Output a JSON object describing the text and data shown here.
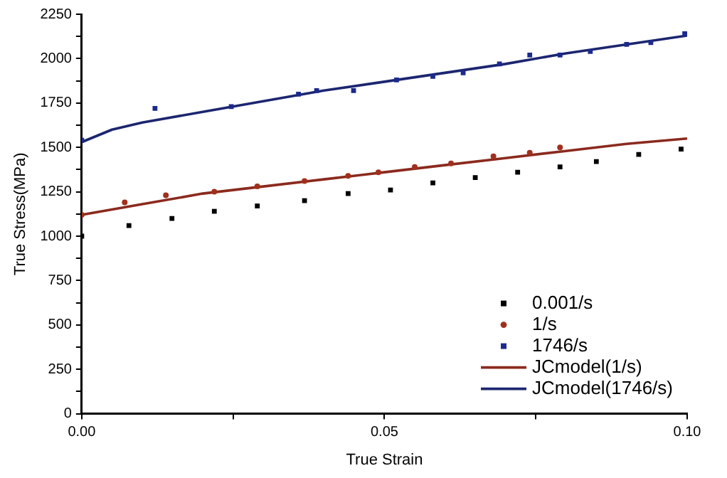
{
  "chart_data": {
    "type": "scatter",
    "xlabel": "True Strain",
    "ylabel": "True Stress(MPa)",
    "xlim": [
      0,
      0.1
    ],
    "xticks": [
      {
        "value": 0,
        "label": "0.00"
      },
      {
        "value": 0.025,
        "label": null
      },
      {
        "value": 0.05,
        "label": "0.05"
      },
      {
        "value": 0.075,
        "label": null
      },
      {
        "value": 0.1,
        "label": "0.10"
      }
    ],
    "ylim": [
      0,
      2250
    ],
    "yticks": [
      0,
      {
        "value": 125,
        "label": null
      },
      250,
      {
        "value": 375,
        "label": null
      },
      500,
      {
        "value": 625,
        "label": null
      },
      750,
      {
        "value": 875,
        "label": null
      },
      1000,
      {
        "value": 1125,
        "label": null
      },
      1250,
      {
        "value": 1375,
        "label": null
      },
      1500,
      {
        "value": 1625,
        "label": null
      },
      1750,
      {
        "value": 1875,
        "label": null
      },
      2000,
      {
        "value": 2125,
        "label": null
      },
      2250
    ],
    "grid": false,
    "legend": "bottom right",
    "series": [
      {
        "name": "0.001/s",
        "type": "scatter",
        "marker": "square",
        "color": "#000000",
        "x": [
          0,
          0.0078,
          0.0149,
          0.0219,
          0.029,
          0.0368,
          0.044,
          0.051,
          0.058,
          0.065,
          0.072,
          0.079,
          0.085,
          0.092,
          0.099
        ],
        "values": [
          1000,
          1060,
          1100,
          1140,
          1170,
          1200,
          1240,
          1260,
          1300,
          1330,
          1360,
          1390,
          1420,
          1460,
          1490
        ]
      },
      {
        "name": "1/s",
        "type": "scatter",
        "marker": "circle",
        "color": "#a0301c",
        "x": [
          0,
          0.0071,
          0.0139,
          0.0219,
          0.029,
          0.0368,
          0.044,
          0.049,
          0.055,
          0.061,
          0.068,
          0.074,
          0.079
        ],
        "values": [
          1120,
          1190,
          1230,
          1250,
          1280,
          1310,
          1340,
          1360,
          1390,
          1410,
          1450,
          1470,
          1500
        ]
      },
      {
        "name": "1746/s",
        "type": "scatter",
        "marker": "square",
        "color": "#1c2a8c",
        "x": [
          0,
          0.0121,
          0.0247,
          0.0358,
          0.0388,
          0.0449,
          0.052,
          0.058,
          0.063,
          0.069,
          0.074,
          0.079,
          0.084,
          0.09,
          0.094,
          0.0996
        ],
        "values": [
          1540,
          1720,
          1730,
          1800,
          1820,
          1820,
          1880,
          1900,
          1920,
          1970,
          2020,
          2020,
          2040,
          2080,
          2090,
          2140
        ]
      },
      {
        "name": "JCmodel(1/s)",
        "type": "line",
        "marker": "none",
        "line_style": "solid",
        "color": "#8b2a1e",
        "x": [
          0,
          0.005,
          0.01,
          0.02,
          0.03,
          0.04,
          0.05,
          0.06,
          0.07,
          0.08,
          0.09,
          0.1
        ],
        "values": [
          1120,
          1150,
          1180,
          1240,
          1280,
          1320,
          1360,
          1400,
          1440,
          1480,
          1520,
          1550
        ]
      },
      {
        "name": "JCmodel(1746/s)",
        "type": "line",
        "marker": "none",
        "line_style": "solid",
        "color": "#1c2670",
        "x": [
          0,
          0.005,
          0.01,
          0.02,
          0.03,
          0.04,
          0.05,
          0.06,
          0.07,
          0.08,
          0.09,
          0.1
        ],
        "values": [
          1530,
          1600,
          1640,
          1700,
          1760,
          1820,
          1870,
          1920,
          1970,
          2030,
          2080,
          2130
        ]
      }
    ]
  }
}
